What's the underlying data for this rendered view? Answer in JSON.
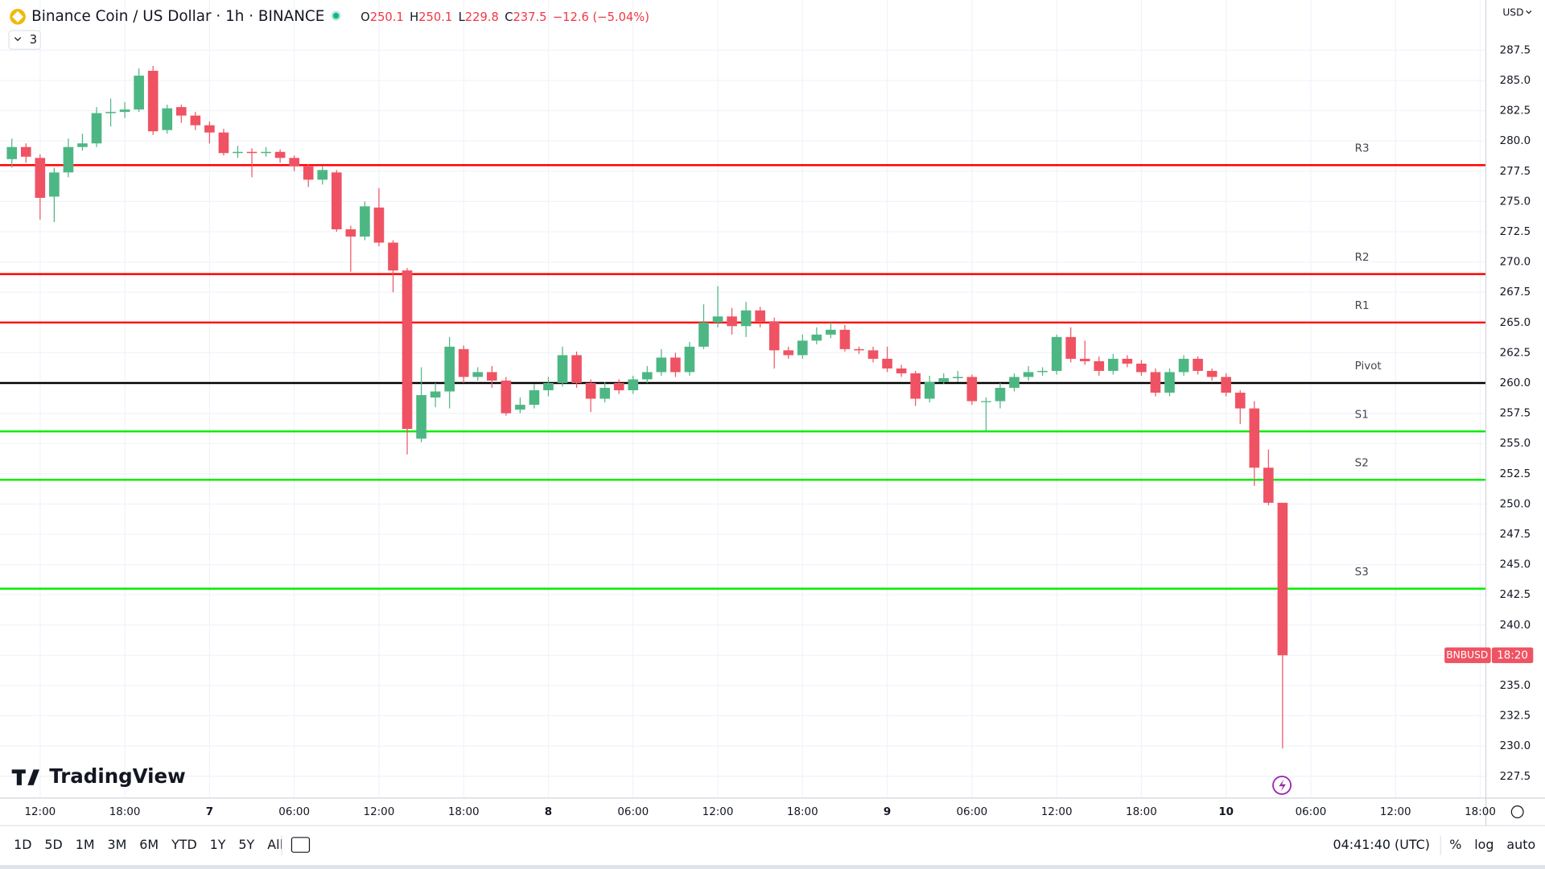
{
  "header": {
    "title": "Binance Coin / US Dollar · 1h · BINANCE",
    "ohlc": [
      {
        "k": "O",
        "v": "250.1"
      },
      {
        "k": "H",
        "v": "250.1"
      },
      {
        "k": "L",
        "v": "229.8"
      },
      {
        "k": "C",
        "v": "237.5"
      }
    ],
    "change": "−12.6 (−5.04%)",
    "indicator_count": "3",
    "currency": "USD"
  },
  "chart_data": {
    "type": "candlestick",
    "open": [
      278.5,
      279.5,
      278.6,
      275.4,
      277.4,
      279.5,
      279.8,
      282.3,
      282.4,
      282.6,
      285.8,
      280.9,
      282.8,
      282.1,
      281.3,
      280.7,
      279.0,
      279.1,
      279.0,
      279.1,
      278.6,
      277.9,
      276.8,
      277.4,
      272.7,
      272.1,
      274.5,
      271.6,
      269.3,
      255.4,
      258.8,
      259.3,
      262.8,
      260.5,
      260.9,
      260.2,
      257.8,
      258.2,
      259.4,
      260.0,
      262.3,
      260.0,
      258.7,
      260.0,
      259.4,
      260.3,
      260.9,
      262.1,
      260.9,
      263.0,
      265.0,
      265.5,
      264.7,
      266.0,
      265.1,
      262.7,
      262.3,
      263.5,
      264.0,
      264.4,
      262.8,
      262.7,
      262.0,
      261.2,
      260.8,
      258.7,
      260.1,
      260.4,
      260.5,
      258.5,
      258.5,
      259.6,
      260.5,
      260.9,
      261.0,
      263.8,
      262.0,
      261.8,
      261.0,
      262.0,
      261.6,
      260.9,
      259.2,
      260.9,
      262.0,
      261.0,
      260.5,
      259.2,
      257.9,
      253.0,
      250.1
    ],
    "high": [
      280.2,
      279.8,
      278.9,
      277.8,
      280.2,
      280.6,
      282.8,
      283.5,
      283.2,
      286.0,
      286.2,
      283.0,
      283.0,
      282.4,
      281.6,
      281.0,
      279.6,
      279.4,
      279.5,
      279.3,
      278.8,
      278.1,
      277.9,
      277.6,
      273.0,
      275.0,
      276.1,
      271.8,
      269.5,
      261.3,
      260.0,
      263.8,
      263.1,
      261.3,
      261.4,
      260.5,
      258.8,
      259.9,
      260.5,
      263.0,
      262.6,
      260.3,
      260.1,
      260.3,
      260.6,
      261.4,
      262.8,
      262.5,
      263.4,
      266.5,
      268.0,
      266.2,
      266.7,
      266.3,
      265.4,
      263.0,
      264.0,
      264.6,
      265.0,
      264.8,
      263.0,
      263.0,
      263.0,
      261.5,
      261.0,
      260.6,
      260.8,
      261.0,
      260.7,
      258.8,
      260.0,
      260.8,
      261.4,
      261.3,
      264.0,
      264.6,
      263.5,
      262.2,
      262.4,
      262.3,
      261.9,
      261.2,
      261.2,
      262.3,
      262.2,
      261.2,
      260.8,
      259.4,
      258.5,
      254.5,
      250.1
    ],
    "low": [
      277.8,
      278.2,
      273.5,
      273.3,
      277.0,
      279.2,
      279.5,
      281.2,
      281.9,
      282.4,
      280.5,
      280.6,
      281.5,
      280.9,
      279.8,
      278.8,
      278.6,
      277.0,
      278.7,
      278.2,
      277.5,
      276.2,
      276.4,
      272.5,
      269.2,
      271.8,
      271.3,
      267.5,
      254.1,
      255.1,
      258.0,
      257.9,
      260.0,
      260.2,
      259.6,
      257.3,
      257.5,
      257.9,
      258.9,
      259.7,
      259.6,
      257.6,
      258.4,
      259.1,
      259.1,
      260.0,
      260.6,
      260.5,
      260.6,
      262.8,
      264.6,
      264.0,
      263.8,
      264.6,
      261.2,
      262.0,
      262.0,
      263.2,
      263.7,
      262.6,
      262.4,
      261.7,
      260.9,
      260.5,
      258.1,
      258.4,
      259.9,
      260.1,
      258.2,
      256.0,
      257.9,
      259.3,
      260.2,
      260.6,
      260.7,
      261.7,
      261.5,
      260.6,
      260.7,
      261.3,
      260.6,
      258.9,
      258.9,
      260.6,
      260.7,
      260.2,
      258.9,
      256.6,
      251.5,
      249.9,
      229.8
    ],
    "close": [
      279.5,
      278.7,
      275.3,
      277.4,
      279.5,
      279.8,
      282.3,
      282.4,
      282.6,
      285.4,
      280.8,
      282.7,
      282.1,
      281.3,
      280.7,
      279.0,
      279.1,
      279.0,
      279.1,
      278.6,
      277.9,
      276.8,
      277.6,
      272.7,
      272.1,
      274.6,
      271.6,
      269.3,
      256.2,
      259.0,
      259.3,
      263.0,
      260.5,
      260.9,
      260.2,
      257.5,
      258.2,
      259.4,
      260.0,
      262.3,
      260.0,
      258.7,
      259.6,
      259.4,
      260.3,
      260.9,
      262.1,
      260.9,
      263.0,
      265.0,
      265.5,
      264.7,
      266.0,
      265.1,
      262.7,
      262.3,
      263.5,
      264.0,
      264.4,
      262.8,
      262.7,
      262.0,
      261.2,
      260.8,
      258.7,
      260.1,
      260.4,
      260.5,
      258.5,
      258.5,
      259.6,
      260.5,
      260.9,
      261.0,
      263.8,
      262.0,
      261.8,
      261.0,
      262.0,
      261.6,
      260.9,
      259.2,
      260.9,
      262.0,
      261.0,
      260.5,
      259.2,
      257.9,
      253.0,
      250.1,
      237.5
    ],
    "up_color": "#4db784",
    "down_color": "#ef5363",
    "ylim": [
      225.7,
      291.65
    ],
    "yticks": [
      287.5,
      {
        "value": 285,
        "label": "285.0"
      },
      282.5,
      {
        "value": 280,
        "label": "280.0"
      },
      277.5,
      {
        "value": 275,
        "label": "275.0"
      },
      272.5,
      {
        "value": 270,
        "label": "270.0"
      },
      267.5,
      {
        "value": 265,
        "label": "265.0"
      },
      262.5,
      {
        "value": 260,
        "label": "260.0"
      },
      257.5,
      {
        "value": 255,
        "label": "255.0"
      },
      252.5,
      {
        "value": 250,
        "label": "250.0"
      },
      247.5,
      {
        "value": 245,
        "label": "245.0"
      },
      242.5,
      {
        "value": 240,
        "label": "240.0"
      },
      237.5,
      {
        "value": 235,
        "label": "235.0"
      },
      232.5,
      {
        "value": 230,
        "label": "230.0"
      },
      227.5
    ],
    "xlim": [
      -0.84,
      104.4
    ],
    "xticks": [
      {
        "value": 2,
        "label": "12:00"
      },
      {
        "value": 8,
        "label": "18:00"
      },
      {
        "value": 14,
        "label": "7"
      },
      {
        "value": 20,
        "label": "06:00"
      },
      {
        "value": 26,
        "label": "12:00"
      },
      {
        "value": 32,
        "label": "18:00"
      },
      {
        "value": 38,
        "label": "8"
      },
      {
        "value": 44,
        "label": "06:00"
      },
      {
        "value": 50,
        "label": "12:00"
      },
      {
        "value": 56,
        "label": "18:00"
      },
      {
        "value": 62,
        "label": "9"
      },
      {
        "value": 68,
        "label": "06:00"
      },
      {
        "value": 74,
        "label": "12:00"
      },
      {
        "value": 80,
        "label": "18:00"
      },
      {
        "value": 86,
        "label": "10"
      },
      {
        "value": 92,
        "label": "06:00"
      },
      {
        "value": 98,
        "label": "12:00"
      },
      {
        "value": 104,
        "label": "18:00"
      }
    ],
    "grid": true,
    "levels": [
      {
        "name": "R3",
        "value": 278.0,
        "color": "#ff0000"
      },
      {
        "name": "R2",
        "value": 269.0,
        "color": "#ff0000"
      },
      {
        "name": "R1",
        "value": 265.0,
        "color": "#ff0000"
      },
      {
        "name": "Pivot",
        "value": 260.0,
        "color": "#000000"
      },
      {
        "name": "S1",
        "value": 256.0,
        "color": "#00ee00"
      },
      {
        "name": "S2",
        "value": 252.0,
        "color": "#00ee00"
      },
      {
        "name": "S3",
        "value": 243.0,
        "color": "#00ee00"
      }
    ],
    "last_label": {
      "symbol": "BNBUSD",
      "countdown": "18:20"
    }
  },
  "footer": {
    "brand": "TradingView",
    "ranges": [
      "1D",
      "5D",
      "1M",
      "3M",
      "6M",
      "YTD",
      "1Y",
      "5Y",
      "All"
    ],
    "clock": "04:41:40 (UTC)",
    "options": [
      "%",
      "log",
      "auto"
    ]
  }
}
